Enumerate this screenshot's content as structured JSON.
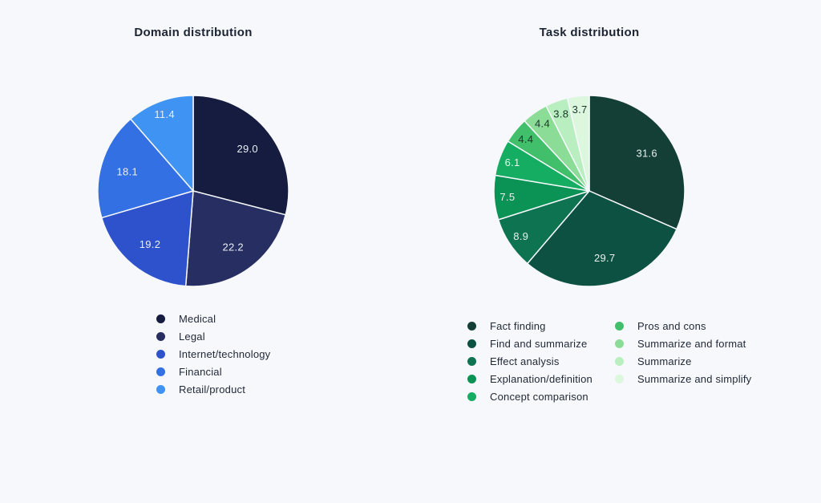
{
  "page": {
    "background_color": "#f7f8fb",
    "slice_divider_color": "#f7f8fb"
  },
  "chart_data": [
    {
      "type": "pie",
      "title": "Domain distribution",
      "legend_position": "bottom",
      "legend_columns": 1,
      "start_angle_deg": 0,
      "direction": "clockwise",
      "slices": [
        {
          "label": "Medical",
          "value": 29.0,
          "color": "#151c40",
          "label_color": "#e9eef6"
        },
        {
          "label": "Legal",
          "value": 22.2,
          "color": "#272f62",
          "label_color": "#e9eef6"
        },
        {
          "label": "Internet/technology",
          "value": 19.2,
          "color": "#2e52cc",
          "label_color": "#e9eef6"
        },
        {
          "label": "Financial",
          "value": 18.1,
          "color": "#3270e4",
          "label_color": "#e9eef6"
        },
        {
          "label": "Retail/product",
          "value": 11.4,
          "color": "#3f93f2",
          "label_color": "#e9eef6"
        }
      ]
    },
    {
      "type": "pie",
      "title": "Task distribution",
      "legend_position": "bottom",
      "legend_columns": 2,
      "start_angle_deg": 0,
      "direction": "clockwise",
      "slices": [
        {
          "label": "Fact finding",
          "value": 31.6,
          "color": "#133f37",
          "label_color": "#e9f1ee"
        },
        {
          "label": "Find and summarize",
          "value": 29.7,
          "color": "#0d5143",
          "label_color": "#e9f1ee"
        },
        {
          "label": "Effect analysis",
          "value": 8.9,
          "color": "#0e7350",
          "label_color": "#e9f1ee"
        },
        {
          "label": "Explanation/definition",
          "value": 7.5,
          "color": "#0b9356",
          "label_color": "#e9f1ee"
        },
        {
          "label": "Concept comparison",
          "value": 6.1,
          "color": "#15ad62",
          "label_color": "#eaf5ee"
        },
        {
          "label": "Pros and cons",
          "value": 4.4,
          "color": "#41bf6a",
          "label_color": "#1d362c"
        },
        {
          "label": "Summarize and format",
          "value": 4.4,
          "color": "#8adc96",
          "label_color": "#1d362c"
        },
        {
          "label": "Summarize",
          "value": 3.8,
          "color": "#b9eec0",
          "label_color": "#1d362c"
        },
        {
          "label": "Summarize and simplify",
          "value": 3.7,
          "color": "#dcf7de",
          "label_color": "#1d362c"
        }
      ]
    }
  ]
}
